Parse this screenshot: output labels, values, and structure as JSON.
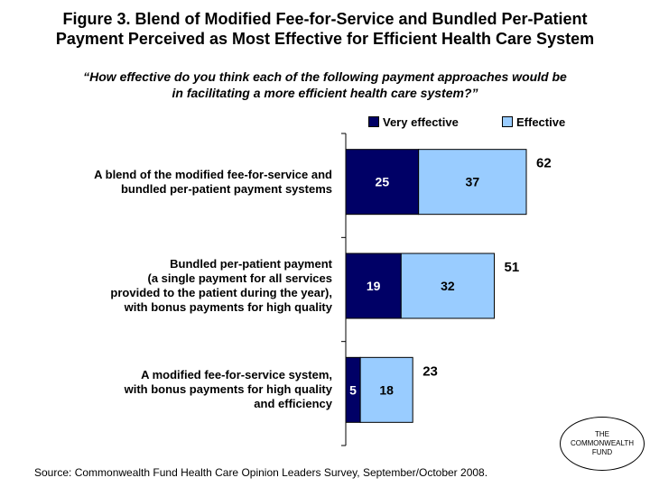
{
  "title": {
    "line1": "Figure 3. Blend of Modified Fee-for-Service and Bundled Per-Patient",
    "line2": "Payment Perceived as Most Effective for Efficient Health Care System"
  },
  "subtitle": {
    "line1": "“How effective do you think each of the following payment approaches would be",
    "line2": "in facilitating a more efficient health care system?”"
  },
  "source": "Source: Commonwealth Fund Health Care Opinion Leaders Survey, September/October 2008.",
  "logo": {
    "line1": "THE",
    "line2": "COMMONWEALTH",
    "line3": "FUND"
  },
  "colors": {
    "very_effective": "#000066",
    "effective": "#99CCFF",
    "axis": "#000000"
  },
  "chart_data": {
    "type": "bar",
    "orientation": "horizontal",
    "stacked": true,
    "categories": [
      [
        "A blend of the modified fee-for-service and",
        "bundled per-patient payment systems"
      ],
      [
        "Bundled per-patient payment",
        "(a single payment for all services",
        "provided to the patient during the year),",
        "with bonus payments for high quality"
      ],
      [
        "A modified fee-for-service system,",
        "with bonus payments for high quality",
        "and efficiency"
      ]
    ],
    "series": [
      {
        "name": "Very effective",
        "values": [
          25,
          19,
          5
        ]
      },
      {
        "name": "Effective",
        "values": [
          37,
          32,
          18
        ]
      }
    ],
    "totals": [
      62,
      51,
      23
    ],
    "xlim": [
      0,
      100
    ],
    "legend": "top",
    "grid": false
  }
}
